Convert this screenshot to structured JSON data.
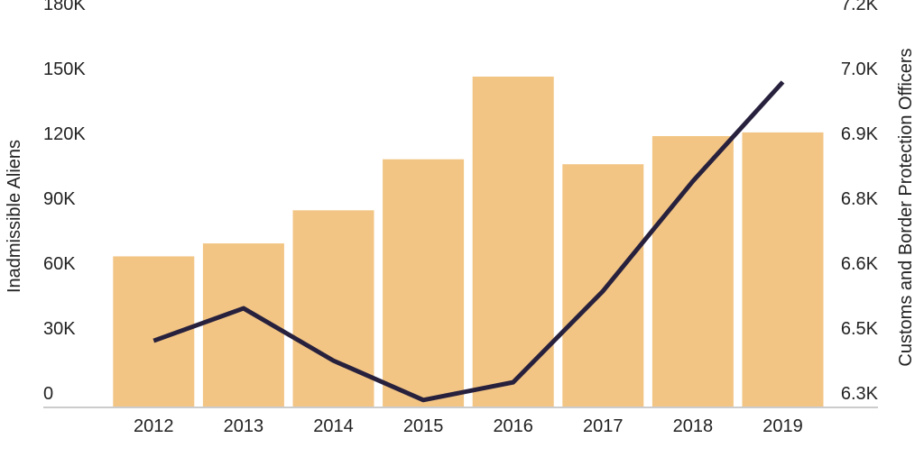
{
  "chart_data": {
    "type": "bar+line",
    "categories": [
      "2012",
      "2013",
      "2014",
      "2015",
      "2016",
      "2017",
      "2018",
      "2019"
    ],
    "series": [
      {
        "name": "Inadmissible Aliens",
        "type": "bar",
        "axis": "left",
        "values": [
          69400,
          75400,
          90700,
          114300,
          152500,
          112000,
          125000,
          126700
        ]
      },
      {
        "name": "Customs and Border Protection Officers",
        "type": "line",
        "axis": "right",
        "values": [
          6452,
          6527,
          6406,
          6315,
          6356,
          6567,
          6821,
          7050
        ]
      }
    ],
    "ylabel": "Inadmissible Aliens",
    "y2label": "Customs and Border Protection Officers",
    "ylim": [
      0,
      180000
    ],
    "y2lim": [
      6300,
      7200
    ],
    "yticks": [
      "0",
      "30K",
      "60K",
      "90K",
      "120K",
      "150K",
      "180K"
    ],
    "y2ticks": [
      "6.3K",
      "6.5K",
      "6.6K",
      "6.8K",
      "6.9K",
      "7.0K",
      "7.2K"
    ],
    "grid": false,
    "colors": {
      "bar": "#f2c584",
      "line": "#28213d",
      "axis": "#cccccc"
    }
  }
}
